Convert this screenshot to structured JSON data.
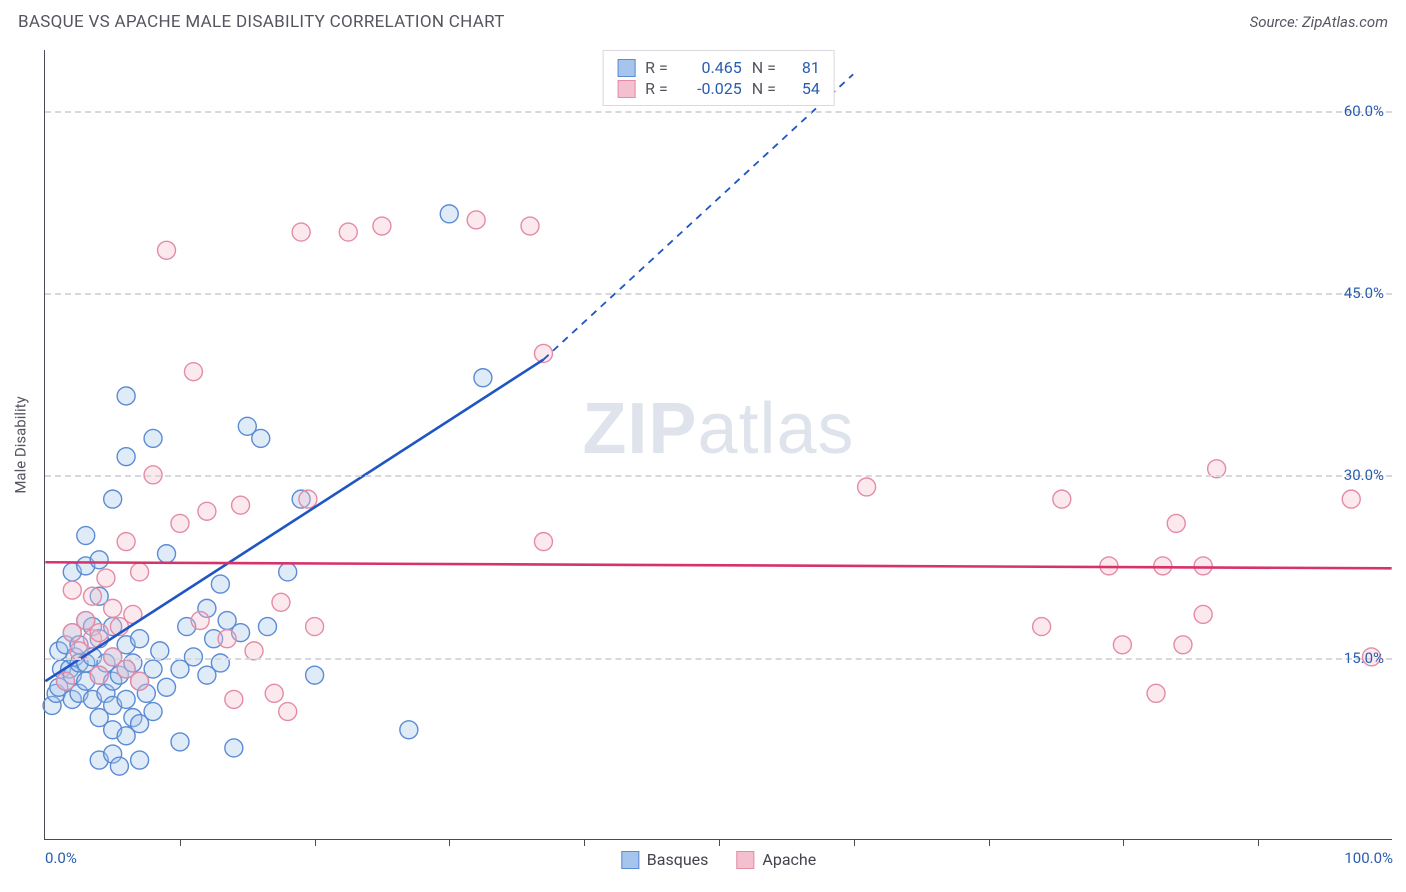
{
  "header": {
    "title": "BASQUE VS APACHE MALE DISABILITY CORRELATION CHART",
    "source": "Source: ZipAtlas.com"
  },
  "watermark": {
    "bold": "ZIP",
    "light": "atlas"
  },
  "chart": {
    "type": "scatter",
    "ylabel": "Male Disability",
    "xlim": [
      0,
      100
    ],
    "ylim": [
      0,
      65
    ],
    "x_ticks_major": [
      10,
      20,
      30,
      40,
      50,
      60,
      70,
      80,
      90
    ],
    "x_tick_labels": [
      {
        "value": 0,
        "label": "0.0%",
        "align": "left"
      },
      {
        "value": 100,
        "label": "100.0%",
        "align": "right"
      }
    ],
    "y_grid": [
      {
        "value": 15,
        "label": "15.0%"
      },
      {
        "value": 30,
        "label": "30.0%"
      },
      {
        "value": 45,
        "label": "45.0%"
      },
      {
        "value": 60,
        "label": "60.0%"
      }
    ],
    "marker_radius": 9,
    "marker_stroke_width": 1.4,
    "marker_fill_opacity": 0.35,
    "grid_color": "#d8d8dc",
    "axis_color": "#4a4a55",
    "background_color": "#ffffff",
    "label_color": "#2a5db0",
    "text_color": "#555560",
    "series": [
      {
        "name": "Basques",
        "color_stroke": "#5b8bd4",
        "color_fill": "#a6c5ec",
        "r_value": "0.465",
        "n_value": "81",
        "trend": {
          "x1": 0,
          "y1": 13.0,
          "x2_solid": 37,
          "y2_solid": 39.5,
          "x2_dash": 60,
          "y2_dash": 63,
          "color": "#1f56c4",
          "width": 2.6
        },
        "points": [
          [
            0.5,
            11.0
          ],
          [
            0.8,
            12.0
          ],
          [
            1.0,
            12.5
          ],
          [
            1.2,
            14.0
          ],
          [
            1.0,
            15.5
          ],
          [
            1.5,
            13.0
          ],
          [
            1.5,
            16.0
          ],
          [
            1.8,
            14.0
          ],
          [
            2.0,
            11.5
          ],
          [
            2.0,
            13.5
          ],
          [
            2.2,
            15.0
          ],
          [
            2.0,
            17.0
          ],
          [
            2.0,
            22.0
          ],
          [
            2.5,
            12.0
          ],
          [
            2.5,
            14.5
          ],
          [
            2.5,
            16.0
          ],
          [
            3.0,
            13.0
          ],
          [
            3.0,
            14.5
          ],
          [
            3.0,
            18.0
          ],
          [
            3.0,
            22.5
          ],
          [
            3.0,
            25.0
          ],
          [
            3.5,
            11.5
          ],
          [
            3.5,
            15.0
          ],
          [
            3.5,
            17.5
          ],
          [
            4.0,
            6.5
          ],
          [
            4.0,
            10.0
          ],
          [
            4.0,
            13.5
          ],
          [
            4.0,
            16.5
          ],
          [
            4.0,
            20.0
          ],
          [
            4.0,
            23.0
          ],
          [
            4.5,
            12.0
          ],
          [
            4.5,
            14.5
          ],
          [
            5.0,
            7.0
          ],
          [
            5.0,
            9.0
          ],
          [
            5.0,
            11.0
          ],
          [
            5.0,
            13.0
          ],
          [
            5.0,
            15.0
          ],
          [
            5.0,
            17.5
          ],
          [
            5.0,
            28.0
          ],
          [
            5.5,
            6.0
          ],
          [
            5.5,
            13.5
          ],
          [
            6.0,
            8.5
          ],
          [
            6.0,
            11.5
          ],
          [
            6.0,
            14.0
          ],
          [
            6.0,
            16.0
          ],
          [
            6.0,
            31.5
          ],
          [
            6.0,
            36.5
          ],
          [
            6.5,
            10.0
          ],
          [
            6.5,
            14.5
          ],
          [
            7.0,
            6.5
          ],
          [
            7.0,
            9.5
          ],
          [
            7.0,
            13.0
          ],
          [
            7.0,
            16.5
          ],
          [
            7.5,
            12.0
          ],
          [
            8.0,
            10.5
          ],
          [
            8.0,
            14.0
          ],
          [
            8.0,
            33.0
          ],
          [
            8.5,
            15.5
          ],
          [
            9.0,
            12.5
          ],
          [
            9.0,
            23.5
          ],
          [
            10.0,
            8.0
          ],
          [
            10.0,
            14.0
          ],
          [
            10.5,
            17.5
          ],
          [
            11.0,
            15.0
          ],
          [
            12.0,
            13.5
          ],
          [
            12.0,
            19.0
          ],
          [
            12.5,
            16.5
          ],
          [
            13.0,
            14.5
          ],
          [
            13.0,
            21.0
          ],
          [
            13.5,
            18.0
          ],
          [
            14.0,
            7.5
          ],
          [
            14.5,
            17.0
          ],
          [
            15.0,
            34.0
          ],
          [
            16.0,
            33.0
          ],
          [
            16.5,
            17.5
          ],
          [
            18.0,
            22.0
          ],
          [
            19.0,
            28.0
          ],
          [
            20.0,
            13.5
          ],
          [
            27.0,
            9.0
          ],
          [
            30.0,
            51.5
          ],
          [
            32.5,
            38.0
          ]
        ]
      },
      {
        "name": "Apache",
        "color_stroke": "#e48ba6",
        "color_fill": "#f4c0cf",
        "r_value": "-0.025",
        "n_value": "54",
        "trend": {
          "x1": 0,
          "y1": 22.8,
          "x2_solid": 100,
          "y2_solid": 22.3,
          "color": "#d6336c",
          "width": 2.6
        },
        "points": [
          [
            1.5,
            13.0
          ],
          [
            2.0,
            17.0
          ],
          [
            2.0,
            20.5
          ],
          [
            2.5,
            15.5
          ],
          [
            3.0,
            18.0
          ],
          [
            3.5,
            16.5
          ],
          [
            3.5,
            20.0
          ],
          [
            4.0,
            13.5
          ],
          [
            4.0,
            17.0
          ],
          [
            4.5,
            21.5
          ],
          [
            5.0,
            15.0
          ],
          [
            5.0,
            19.0
          ],
          [
            5.5,
            17.5
          ],
          [
            6.0,
            14.0
          ],
          [
            6.0,
            24.5
          ],
          [
            6.5,
            18.5
          ],
          [
            7.0,
            13.0
          ],
          [
            7.0,
            22.0
          ],
          [
            8.0,
            30.0
          ],
          [
            9.0,
            48.5
          ],
          [
            10.0,
            26.0
          ],
          [
            11.0,
            38.5
          ],
          [
            11.5,
            18.0
          ],
          [
            12.0,
            27.0
          ],
          [
            13.5,
            16.5
          ],
          [
            14.0,
            11.5
          ],
          [
            14.5,
            27.5
          ],
          [
            15.5,
            15.5
          ],
          [
            17.0,
            12.0
          ],
          [
            17.5,
            19.5
          ],
          [
            18.0,
            10.5
          ],
          [
            19.0,
            50.0
          ],
          [
            19.5,
            28.0
          ],
          [
            20.0,
            17.5
          ],
          [
            22.5,
            50.0
          ],
          [
            25.0,
            50.5
          ],
          [
            32.0,
            51.0
          ],
          [
            36.0,
            50.5
          ],
          [
            37.0,
            24.5
          ],
          [
            37.0,
            40.0
          ],
          [
            61.0,
            29.0
          ],
          [
            74.0,
            17.5
          ],
          [
            75.5,
            28.0
          ],
          [
            79.0,
            22.5
          ],
          [
            80.0,
            16.0
          ],
          [
            82.5,
            12.0
          ],
          [
            83.0,
            22.5
          ],
          [
            84.0,
            26.0
          ],
          [
            84.5,
            16.0
          ],
          [
            86.0,
            18.5
          ],
          [
            86.0,
            22.5
          ],
          [
            87.0,
            30.5
          ],
          [
            97.0,
            28.0
          ],
          [
            98.5,
            15.0
          ]
        ]
      }
    ]
  },
  "legend_top": {
    "r_label": "R =",
    "n_label": "N ="
  }
}
